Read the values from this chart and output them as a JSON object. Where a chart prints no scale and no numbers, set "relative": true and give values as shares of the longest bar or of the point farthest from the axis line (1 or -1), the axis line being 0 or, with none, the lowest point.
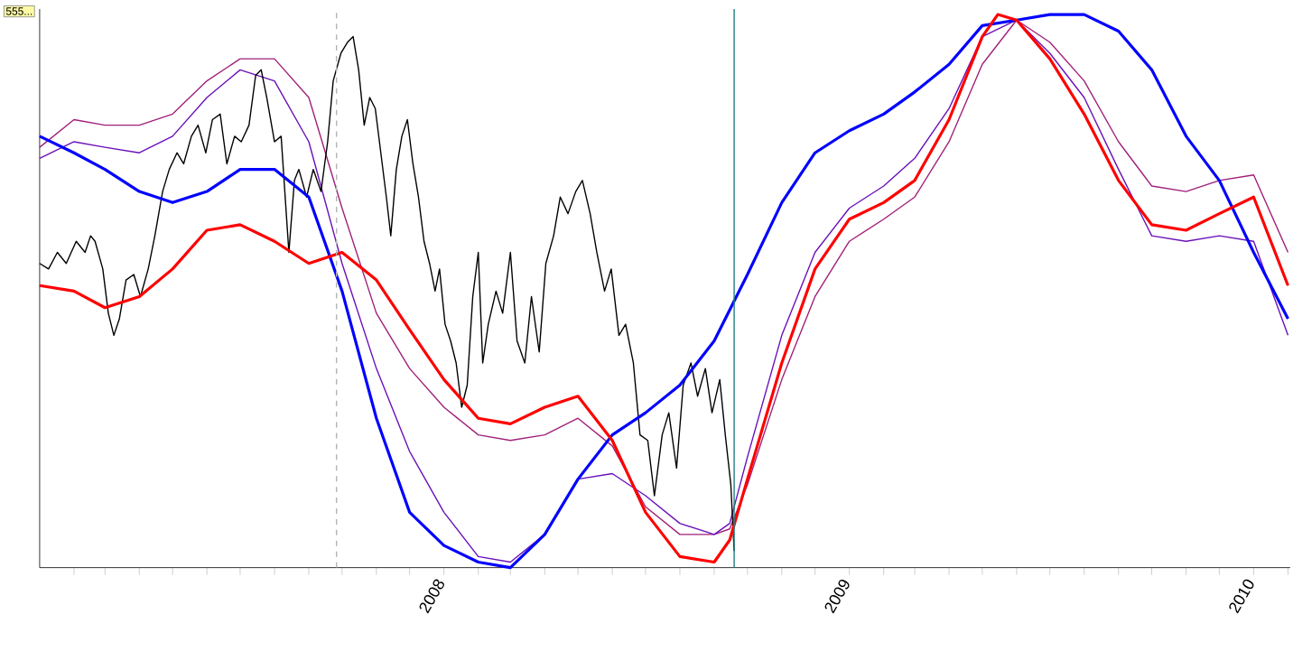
{
  "chart_data": {
    "type": "line",
    "relative": true,
    "xlim": [
      "2007-01-01",
      "2010-02-03"
    ],
    "xticks": [
      {
        "value": "2007-02-01",
        "label": null
      },
      {
        "value": "2007-03-01",
        "label": null
      },
      {
        "value": "2007-04-01",
        "label": null
      },
      {
        "value": "2007-05-01",
        "label": null
      },
      {
        "value": "2007-06-01",
        "label": null
      },
      {
        "value": "2007-07-01",
        "label": null
      },
      {
        "value": "2007-08-01",
        "label": null
      },
      {
        "value": "2007-09-01",
        "label": null
      },
      {
        "value": "2007-10-01",
        "label": null
      },
      {
        "value": "2007-11-01",
        "label": null
      },
      {
        "value": "2007-12-01",
        "label": null
      },
      {
        "value": "2008-01-01",
        "label": "2008"
      },
      {
        "value": "2008-02-01",
        "label": null
      },
      {
        "value": "2008-03-01",
        "label": null
      },
      {
        "value": "2008-04-01",
        "label": null
      },
      {
        "value": "2008-05-01",
        "label": null
      },
      {
        "value": "2008-06-01",
        "label": null
      },
      {
        "value": "2008-07-01",
        "label": null
      },
      {
        "value": "2008-08-01",
        "label": null
      },
      {
        "value": "2008-09-01",
        "label": null
      },
      {
        "value": "2008-10-01",
        "label": null
      },
      {
        "value": "2008-11-01",
        "label": null
      },
      {
        "value": "2008-12-01",
        "label": null
      },
      {
        "value": "2009-01-01",
        "label": "2009"
      },
      {
        "value": "2009-02-01",
        "label": null
      },
      {
        "value": "2009-03-01",
        "label": null
      },
      {
        "value": "2009-04-01",
        "label": null
      },
      {
        "value": "2009-05-01",
        "label": null
      },
      {
        "value": "2009-06-01",
        "label": null
      },
      {
        "value": "2009-07-01",
        "label": null
      },
      {
        "value": "2009-08-01",
        "label": null
      },
      {
        "value": "2009-09-01",
        "label": null
      },
      {
        "value": "2009-10-01",
        "label": null
      },
      {
        "value": "2009-11-01",
        "label": null
      },
      {
        "value": "2009-12-01",
        "label": null
      },
      {
        "value": "2010-01-01",
        "label": "2010"
      },
      {
        "value": "2010-02-01",
        "label": null
      }
    ],
    "grid": false,
    "marker": "none",
    "line_style": "solid",
    "ref_lines": [
      {
        "axis": "x",
        "value": "2007-09-26",
        "color": "#b4b4b4",
        "line_style": "dashed"
      },
      {
        "axis": "x",
        "value": "2008-09-19",
        "color": "#1f7f80",
        "line_style": "solid"
      }
    ],
    "annotations": [
      "555..."
    ],
    "series": [
      {
        "color": "#a0207a",
        "x": [
          "2007-01-01",
          "2007-02-01",
          "2007-03-01",
          "2007-04-01",
          "2007-05-01",
          "2007-06-01",
          "2007-07-01",
          "2007-08-01",
          "2007-09-01",
          "2007-10-01",
          "2007-11-01",
          "2007-12-01",
          "2008-01-01",
          "2008-02-01",
          "2008-03-01",
          "2008-04-01",
          "2008-05-01",
          "2008-06-01",
          "2008-07-01",
          "2008-08-01",
          "2008-09-01",
          "2008-09-15",
          "2008-10-01",
          "2008-11-01",
          "2008-12-01",
          "2009-01-01",
          "2009-02-01",
          "2009-03-01",
          "2009-04-01",
          "2009-05-01",
          "2009-06-01",
          "2009-07-01",
          "2009-08-01",
          "2009-09-01",
          "2009-10-01",
          "2009-11-01",
          "2009-12-01",
          "2010-01-01",
          "2010-02-01"
        ],
        "values": [
          0.76,
          0.81,
          0.8,
          0.8,
          0.82,
          0.88,
          0.92,
          0.92,
          0.85,
          0.65,
          0.46,
          0.36,
          0.29,
          0.24,
          0.23,
          0.24,
          0.27,
          0.22,
          0.11,
          0.06,
          0.06,
          0.07,
          0.15,
          0.34,
          0.49,
          0.59,
          0.63,
          0.67,
          0.77,
          0.91,
          0.99,
          0.95,
          0.88,
          0.77,
          0.69,
          0.68,
          0.7,
          0.71,
          0.57
        ]
      },
      {
        "color": "#6a10b8",
        "x": [
          "2007-01-01",
          "2007-02-01",
          "2007-03-01",
          "2007-04-01",
          "2007-05-01",
          "2007-06-01",
          "2007-07-01",
          "2007-08-01",
          "2007-09-01",
          "2007-10-01",
          "2007-11-01",
          "2007-12-01",
          "2008-01-01",
          "2008-02-01",
          "2008-03-01",
          "2008-04-01",
          "2008-05-01",
          "2008-06-01",
          "2008-07-01",
          "2008-08-01",
          "2008-09-01",
          "2008-09-15",
          "2008-10-01",
          "2008-11-01",
          "2008-12-01",
          "2009-01-01",
          "2009-02-01",
          "2009-03-01",
          "2009-04-01",
          "2009-05-01",
          "2009-06-01",
          "2009-07-01",
          "2009-08-01",
          "2009-09-01",
          "2009-10-01",
          "2009-11-01",
          "2009-12-01",
          "2010-01-01",
          "2010-02-01"
        ],
        "values": [
          0.74,
          0.77,
          0.76,
          0.75,
          0.78,
          0.85,
          0.9,
          0.88,
          0.77,
          0.55,
          0.36,
          0.21,
          0.1,
          0.02,
          0.01,
          0.06,
          0.16,
          0.17,
          0.13,
          0.08,
          0.06,
          0.08,
          0.2,
          0.42,
          0.57,
          0.65,
          0.69,
          0.74,
          0.83,
          0.96,
          0.99,
          0.93,
          0.85,
          0.72,
          0.6,
          0.59,
          0.6,
          0.59,
          0.42
        ]
      },
      {
        "color": "#000000",
        "x": [
          "2007-01-01",
          "2007-01-09",
          "2007-01-17",
          "2007-01-25",
          "2007-02-03",
          "2007-02-11",
          "2007-02-16",
          "2007-02-20",
          "2007-02-27",
          "2007-03-04",
          "2007-03-09",
          "2007-03-14",
          "2007-03-20",
          "2007-03-27",
          "2007-04-02",
          "2007-04-09",
          "2007-04-15",
          "2007-04-22",
          "2007-04-28",
          "2007-05-05",
          "2007-05-11",
          "2007-05-18",
          "2007-05-24",
          "2007-05-31",
          "2007-06-06",
          "2007-06-13",
          "2007-06-19",
          "2007-06-26",
          "2007-07-02",
          "2007-07-09",
          "2007-07-15",
          "2007-07-20",
          "2007-07-25",
          "2007-08-01",
          "2007-08-07",
          "2007-08-14",
          "2007-08-19",
          "2007-08-23",
          "2007-08-30",
          "2007-09-05",
          "2007-09-12",
          "2007-09-18",
          "2007-09-23",
          "2007-09-30",
          "2007-10-06",
          "2007-10-11",
          "2007-10-16",
          "2007-10-21",
          "2007-10-26",
          "2007-10-31",
          "2007-11-05",
          "2007-11-10",
          "2007-11-14",
          "2007-11-19",
          "2007-11-24",
          "2007-11-29",
          "2007-12-04",
          "2007-12-09",
          "2007-12-14",
          "2007-12-19",
          "2007-12-24",
          "2007-12-28",
          "2008-01-02",
          "2008-01-07",
          "2008-01-12",
          "2008-01-17",
          "2008-01-22",
          "2008-01-27",
          "2008-02-01",
          "2008-02-05",
          "2008-02-10",
          "2008-02-17",
          "2008-02-23",
          "2008-03-01",
          "2008-03-07",
          "2008-03-14",
          "2008-03-20",
          "2008-03-27",
          "2008-04-02",
          "2008-04-09",
          "2008-04-15",
          "2008-04-22",
          "2008-04-29",
          "2008-05-05",
          "2008-05-12",
          "2008-05-18",
          "2008-05-25",
          "2008-05-31",
          "2008-06-07",
          "2008-06-13",
          "2008-06-20",
          "2008-06-26",
          "2008-07-03",
          "2008-07-09",
          "2008-07-16",
          "2008-07-22",
          "2008-07-29",
          "2008-08-04",
          "2008-08-11",
          "2008-08-17",
          "2008-08-24",
          "2008-08-30",
          "2008-09-06",
          "2008-09-11",
          "2008-09-16",
          "2008-09-19"
        ],
        "values": [
          0.55,
          0.54,
          0.57,
          0.55,
          0.59,
          0.57,
          0.6,
          0.59,
          0.54,
          0.46,
          0.42,
          0.45,
          0.52,
          0.53,
          0.49,
          0.54,
          0.6,
          0.68,
          0.72,
          0.75,
          0.73,
          0.78,
          0.8,
          0.75,
          0.81,
          0.82,
          0.73,
          0.78,
          0.77,
          0.8,
          0.89,
          0.9,
          0.85,
          0.77,
          0.78,
          0.57,
          0.7,
          0.72,
          0.67,
          0.72,
          0.68,
          0.77,
          0.88,
          0.93,
          0.95,
          0.96,
          0.9,
          0.8,
          0.85,
          0.83,
          0.75,
          0.67,
          0.6,
          0.72,
          0.78,
          0.81,
          0.73,
          0.67,
          0.59,
          0.55,
          0.5,
          0.54,
          0.44,
          0.41,
          0.37,
          0.29,
          0.33,
          0.49,
          0.57,
          0.37,
          0.44,
          0.5,
          0.46,
          0.57,
          0.41,
          0.37,
          0.49,
          0.39,
          0.55,
          0.6,
          0.67,
          0.64,
          0.68,
          0.7,
          0.64,
          0.57,
          0.5,
          0.54,
          0.42,
          0.44,
          0.37,
          0.24,
          0.23,
          0.13,
          0.24,
          0.28,
          0.18,
          0.33,
          0.37,
          0.31,
          0.36,
          0.28,
          0.34,
          0.24,
          0.15,
          0.03
        ]
      },
      {
        "color": "#0000ff",
        "x": [
          "2007-01-01",
          "2007-02-01",
          "2007-03-01",
          "2007-04-01",
          "2007-05-01",
          "2007-06-01",
          "2007-07-01",
          "2007-08-01",
          "2007-09-01",
          "2007-10-01",
          "2007-11-01",
          "2007-12-01",
          "2008-01-01",
          "2008-02-01",
          "2008-03-01",
          "2008-04-01",
          "2008-05-01",
          "2008-06-01",
          "2008-07-01",
          "2008-08-01",
          "2008-09-01",
          "2008-10-01",
          "2008-11-01",
          "2008-12-01",
          "2009-01-01",
          "2009-02-01",
          "2009-03-01",
          "2009-04-01",
          "2009-05-01",
          "2009-06-01",
          "2009-07-01",
          "2009-08-01",
          "2009-09-01",
          "2009-10-01",
          "2009-11-01",
          "2009-12-01",
          "2010-01-01",
          "2010-02-01"
        ],
        "values": [
          0.78,
          0.75,
          0.72,
          0.68,
          0.66,
          0.68,
          0.72,
          0.72,
          0.67,
          0.5,
          0.27,
          0.1,
          0.04,
          0.01,
          0.0,
          0.06,
          0.16,
          0.24,
          0.28,
          0.33,
          0.41,
          0.53,
          0.66,
          0.75,
          0.79,
          0.82,
          0.86,
          0.91,
          0.98,
          0.99,
          1.0,
          1.0,
          0.97,
          0.9,
          0.78,
          0.7,
          0.57,
          0.45
        ]
      },
      {
        "color": "#ff0000",
        "x": [
          "2007-01-01",
          "2007-02-01",
          "2007-03-01",
          "2007-04-01",
          "2007-05-01",
          "2007-06-01",
          "2007-07-01",
          "2007-08-01",
          "2007-09-01",
          "2007-10-01",
          "2007-11-01",
          "2007-12-01",
          "2008-01-01",
          "2008-02-01",
          "2008-03-01",
          "2008-04-01",
          "2008-05-01",
          "2008-06-01",
          "2008-07-01",
          "2008-08-01",
          "2008-09-01",
          "2008-09-15",
          "2008-10-01",
          "2008-11-01",
          "2008-12-01",
          "2009-01-01",
          "2009-02-01",
          "2009-03-01",
          "2009-04-01",
          "2009-05-01",
          "2009-05-15",
          "2009-06-01",
          "2009-07-01",
          "2009-08-01",
          "2009-09-01",
          "2009-10-01",
          "2009-11-01",
          "2009-12-01",
          "2010-01-01",
          "2010-02-01"
        ],
        "values": [
          0.51,
          0.5,
          0.47,
          0.49,
          0.54,
          0.61,
          0.62,
          0.59,
          0.55,
          0.57,
          0.52,
          0.43,
          0.34,
          0.27,
          0.26,
          0.29,
          0.31,
          0.23,
          0.1,
          0.02,
          0.01,
          0.05,
          0.16,
          0.37,
          0.54,
          0.63,
          0.66,
          0.7,
          0.81,
          0.96,
          1.0,
          0.99,
          0.92,
          0.82,
          0.7,
          0.62,
          0.61,
          0.64,
          0.67,
          0.51
        ]
      }
    ]
  }
}
